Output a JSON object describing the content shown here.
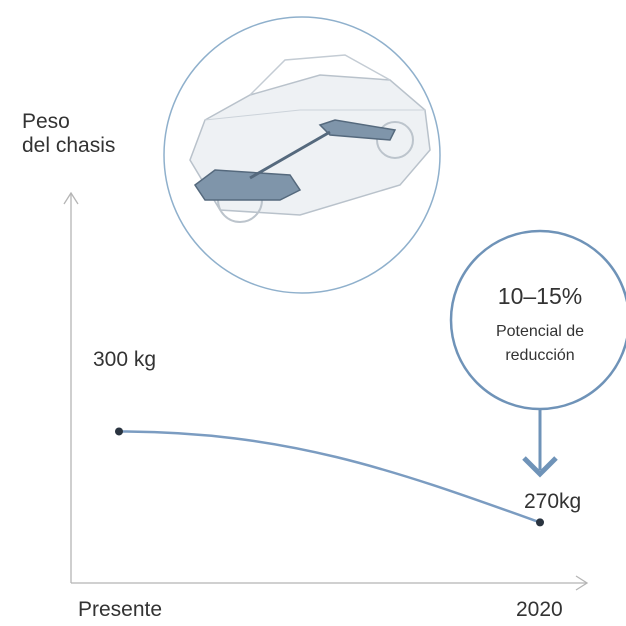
{
  "chart_data": {
    "type": "line",
    "y_label": "Peso\ndel chasis",
    "categories": [
      "Presente",
      "2020"
    ],
    "values": [
      300,
      270
    ],
    "value_labels": [
      "300 kg",
      "270kg"
    ],
    "ylim": [
      250,
      378
    ],
    "color": "#7b9cc1",
    "marker_color": "#2a3440",
    "annotation": {
      "title": "10–15%",
      "text": "Potencial de\nreducción"
    }
  }
}
